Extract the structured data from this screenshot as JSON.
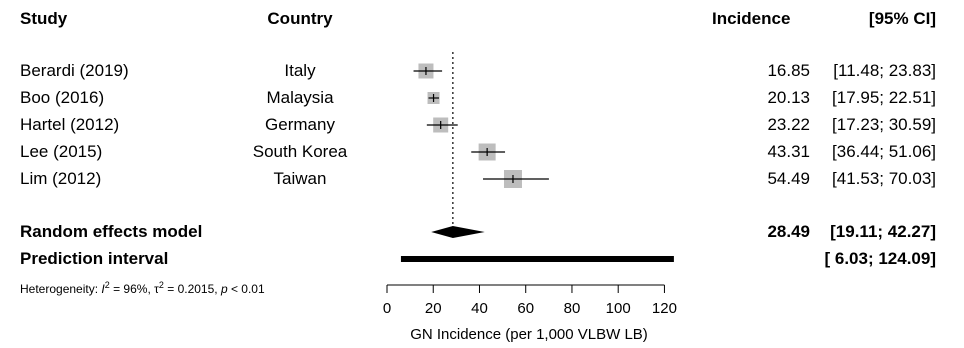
{
  "headers": {
    "study": "Study",
    "country": "Country",
    "incidence": "Incidence",
    "ci": "[95% CI]"
  },
  "studies": [
    {
      "study": "Berardi (2019)",
      "country": "Italy",
      "incidence": "16.85",
      "ci": "[11.48;  23.83]"
    },
    {
      "study": "Boo (2016)",
      "country": "Malaysia",
      "incidence": "20.13",
      "ci": "[17.95;  22.51]"
    },
    {
      "study": "Hartel (2012)",
      "country": "Germany",
      "incidence": "23.22",
      "ci": "[17.23;  30.59]"
    },
    {
      "study": "Lee (2015)",
      "country": "South Korea",
      "incidence": "43.31",
      "ci": "[36.44;  51.06]"
    },
    {
      "study": "Lim (2012)",
      "country": "Taiwan",
      "incidence": "54.49",
      "ci": "[41.53;  70.03]"
    }
  ],
  "summary": {
    "random_label": "Random effects model",
    "random_incidence": "28.49",
    "random_ci": "[19.11;  42.27]",
    "prediction_label": "Prediction interval",
    "prediction_ci": "[ 6.03; 124.09]",
    "heterogeneity_prefix": "Heterogeneity: ",
    "heterogeneity_i2_symbol": "I",
    "heterogeneity_i2_sup": "2",
    "heterogeneity_i2_value": " = 96%, ",
    "heterogeneity_tau_symbol": "τ",
    "heterogeneity_tau_sup": "2",
    "heterogeneity_tau_value": " = 0.2015, ",
    "heterogeneity_p_symbol": "p",
    "heterogeneity_p_value": " < 0.01"
  },
  "chart_data": {
    "type": "forest",
    "xlabel": "GN Incidence (per 1,000 VLBW LB)",
    "xlim": [
      0,
      125
    ],
    "xticks": [
      0,
      20,
      40,
      60,
      80,
      100,
      120
    ],
    "reference_line": 28.49,
    "studies": [
      {
        "name": "Berardi (2019)",
        "estimate": 16.85,
        "lower": 11.48,
        "upper": 23.83,
        "weight": 0.75
      },
      {
        "name": "Boo (2016)",
        "estimate": 20.13,
        "lower": 17.95,
        "upper": 22.51,
        "weight": 0.6
      },
      {
        "name": "Hartel (2012)",
        "estimate": 23.22,
        "lower": 17.23,
        "upper": 30.59,
        "weight": 0.75
      },
      {
        "name": "Lee (2015)",
        "estimate": 43.31,
        "lower": 36.44,
        "upper": 51.06,
        "weight": 0.85
      },
      {
        "name": "Lim (2012)",
        "estimate": 54.49,
        "lower": 41.53,
        "upper": 70.03,
        "weight": 0.9
      }
    ],
    "random_effects": {
      "estimate": 28.49,
      "lower": 19.11,
      "upper": 42.27
    },
    "prediction_interval": {
      "lower": 6.03,
      "upper": 124.09
    },
    "colors": {
      "square": "#bdbdbd",
      "line": "#000000",
      "diamond": "#000000"
    }
  }
}
